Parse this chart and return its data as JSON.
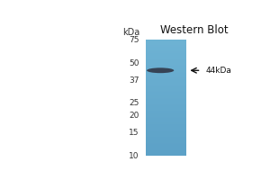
{
  "title": "Western Blot",
  "kda_label": "kDa",
  "markers": [
    75,
    50,
    37,
    25,
    20,
    15,
    10
  ],
  "band_kda": 44,
  "band_label": "←44kDa",
  "bg_color": "#ffffff",
  "lane_color": "#6aafd0",
  "band_color": "#2d3040",
  "fig_width": 3.0,
  "fig_height": 2.0,
  "dpi": 100
}
